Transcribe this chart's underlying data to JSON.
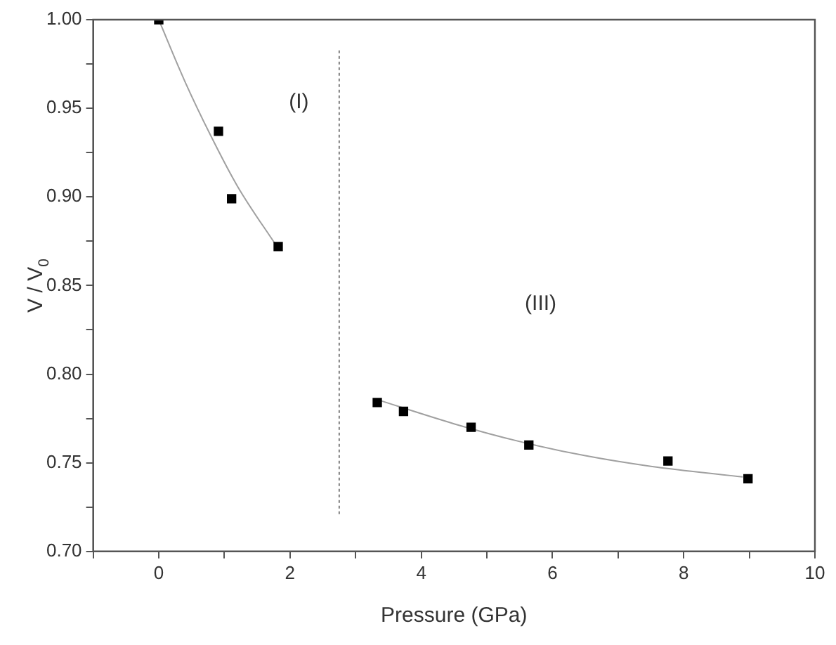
{
  "chart_data": {
    "type": "scatter",
    "xlabel": "Pressure (GPa)",
    "ylabel": "V / V$_{0}$",
    "xlim": [
      -1,
      10
    ],
    "ylim": [
      0.7,
      1.0
    ],
    "xticks": [
      {
        "value": -1,
        "label": null
      },
      0,
      {
        "value": 1,
        "label": null
      },
      2,
      {
        "value": 3,
        "label": null
      },
      4,
      {
        "value": 5,
        "label": null
      },
      6,
      {
        "value": 7,
        "label": null
      },
      8,
      {
        "value": 9,
        "label": null
      },
      10
    ],
    "yticks": [
      {
        "value": 0.7,
        "label": "0.70"
      },
      {
        "value": 0.725,
        "label": null
      },
      {
        "value": 0.75,
        "label": "0.75"
      },
      {
        "value": 0.775,
        "label": null
      },
      {
        "value": 0.8,
        "label": "0.80"
      },
      {
        "value": 0.825,
        "label": null
      },
      {
        "value": 0.85,
        "label": "0.85"
      },
      {
        "value": 0.875,
        "label": null
      },
      {
        "value": 0.9,
        "label": "0.90"
      },
      {
        "value": 0.925,
        "label": null
      },
      {
        "value": 0.95,
        "label": "0.95"
      },
      {
        "value": 0.975,
        "label": null
      },
      {
        "value": 1.0,
        "label": "1.00"
      }
    ],
    "grid": false,
    "legend": false,
    "series": [
      {
        "marker": "square",
        "color": "#000000",
        "x": [
          0,
          0.91,
          1.11,
          1.82,
          3.33,
          3.73,
          4.76,
          5.64,
          7.76,
          8.98
        ],
        "values": [
          1.0,
          0.937,
          0.899,
          0.872,
          0.784,
          0.779,
          0.77,
          0.76,
          0.751,
          0.741
        ]
      },
      {
        "type": "line",
        "marker": "none",
        "color": "#a0a0a0",
        "x": [
          0,
          0.4,
          0.8,
          1.2,
          1.8
        ],
        "values": [
          1.0,
          0.965,
          0.934,
          0.906,
          0.872
        ]
      },
      {
        "type": "line",
        "marker": "none",
        "color": "#a0a0a0",
        "x": [
          3.3,
          4.5,
          5.5,
          6.5,
          7.5,
          8.9
        ],
        "values": [
          0.786,
          0.772,
          0.762,
          0.754,
          0.748,
          0.742
        ]
      }
    ],
    "ref_lines": [
      {
        "axis": "x",
        "value": 2.75,
        "label": null,
        "color": "#808080",
        "line_style": "dotted"
      }
    ],
    "annotations": [
      "(I)",
      "(III)"
    ]
  }
}
